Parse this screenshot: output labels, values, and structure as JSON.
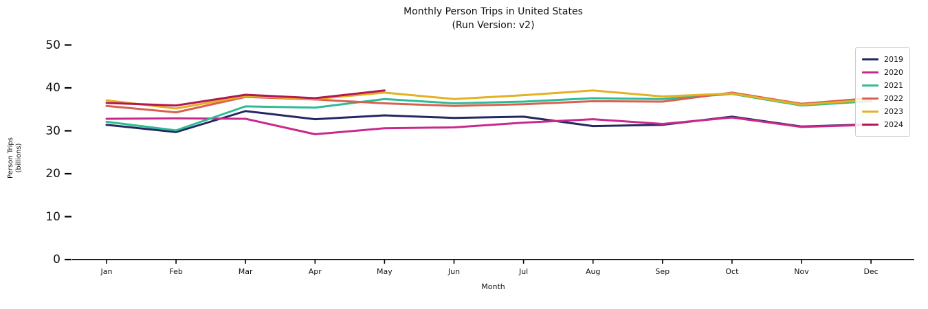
{
  "chart": {
    "title": "Monthly Person Trips in United States",
    "subtitle": "(Run Version: v2)",
    "xlabel": "Month",
    "ylabel_line1": "Person Trips",
    "ylabel_line2": "(billions)",
    "legend_position": "upper right",
    "axis_color": "#000000",
    "chart_data": {
      "type": "line",
      "title": "Monthly Person Trips in United States (Run Version: v2)",
      "xlabel": "Month",
      "ylabel": "Person Trips (billions)",
      "ylim": [
        0,
        50
      ],
      "y_ticks": [
        0,
        10,
        20,
        30,
        40,
        50
      ],
      "grid": false,
      "categories": [
        "Jan",
        "Feb",
        "Mar",
        "Apr",
        "May",
        "Jun",
        "Jul",
        "Aug",
        "Sep",
        "Oct",
        "Nov",
        "Dec"
      ],
      "series": [
        {
          "name": "2019",
          "color": "#252761",
          "values": [
            31.4,
            29.7,
            34.6,
            32.7,
            33.6,
            33.0,
            33.3,
            31.1,
            31.4,
            33.3,
            31.0,
            31.5
          ]
        },
        {
          "name": "2020",
          "color": "#c9298c",
          "values": [
            32.8,
            32.9,
            32.8,
            29.2,
            30.6,
            30.8,
            31.9,
            32.7,
            31.6,
            33.1,
            30.9,
            31.4
          ]
        },
        {
          "name": "2021",
          "color": "#2cbb94",
          "values": [
            32.1,
            30.1,
            35.7,
            35.4,
            37.4,
            36.4,
            36.8,
            37.6,
            37.4,
            38.6,
            35.9,
            36.9
          ]
        },
        {
          "name": "2022",
          "color": "#d9604f",
          "values": [
            35.8,
            34.3,
            37.9,
            37.3,
            36.4,
            35.8,
            36.2,
            36.9,
            36.8,
            38.9,
            36.3,
            37.6
          ]
        },
        {
          "name": "2023",
          "color": "#e3b122",
          "values": [
            37.1,
            35.2,
            38.1,
            37.4,
            38.9,
            37.4,
            38.3,
            39.4,
            38.0,
            38.7,
            36.1,
            37.2
          ]
        },
        {
          "name": "2024",
          "color": "#b41751",
          "values": [
            36.5,
            35.9,
            38.4,
            37.6,
            39.4,
            null,
            null,
            null,
            null,
            null,
            null,
            null
          ]
        }
      ]
    }
  }
}
